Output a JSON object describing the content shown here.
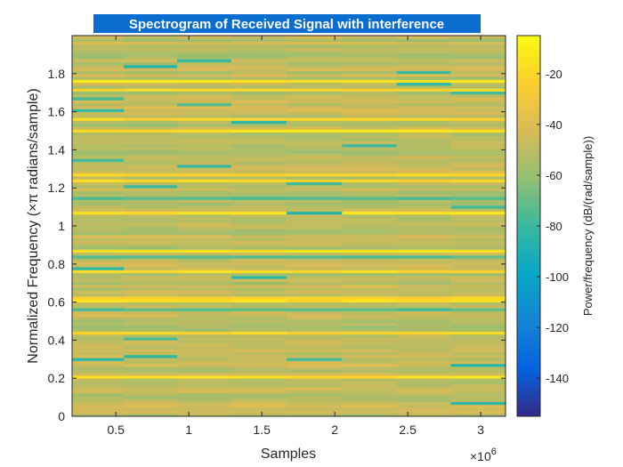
{
  "chart_data": {
    "type": "heatmap",
    "title": "Spectrogram of Received Signal with interference",
    "xlabel": "Samples",
    "ylabel": "Normalized Frequency (×π radians/sample)",
    "x_exponent_label": "×10",
    "x_exponent_power": "6",
    "colorbar_label": "Power/frequency (dB/(rad/sample))",
    "xlim": [
      0.2,
      3.17
    ],
    "ylim": [
      0,
      2
    ],
    "x_ticks": [
      0.5,
      1,
      1.5,
      2,
      2.5,
      3
    ],
    "x_tick_labels": [
      "0.5",
      "1",
      "1.5",
      "2",
      "2.5",
      "3"
    ],
    "y_ticks": [
      0,
      0.2,
      0.4,
      0.6,
      0.8,
      1,
      1.2,
      1.4,
      1.6,
      1.8
    ],
    "y_tick_labels": [
      "0",
      "0.2",
      "0.4",
      "0.6",
      "0.8",
      "1",
      "1.2",
      "1.4",
      "1.6",
      "1.8"
    ],
    "clim": [
      -155,
      -5
    ],
    "colorbar_ticks": [
      -20,
      -40,
      -60,
      -80,
      -100,
      -120,
      -140
    ],
    "colorbar_tick_labels": [
      "-20",
      "-40",
      "-60",
      "-80",
      "-100",
      "-120",
      "-140"
    ],
    "time_bins": [
      0.37,
      0.74,
      1.1,
      1.48,
      1.86,
      2.24,
      2.61,
      2.98
    ],
    "colormap": "parula",
    "typical_level_db": -50,
    "colors": {
      "title_background": "#0a6ed1",
      "axis": "#262626"
    }
  }
}
